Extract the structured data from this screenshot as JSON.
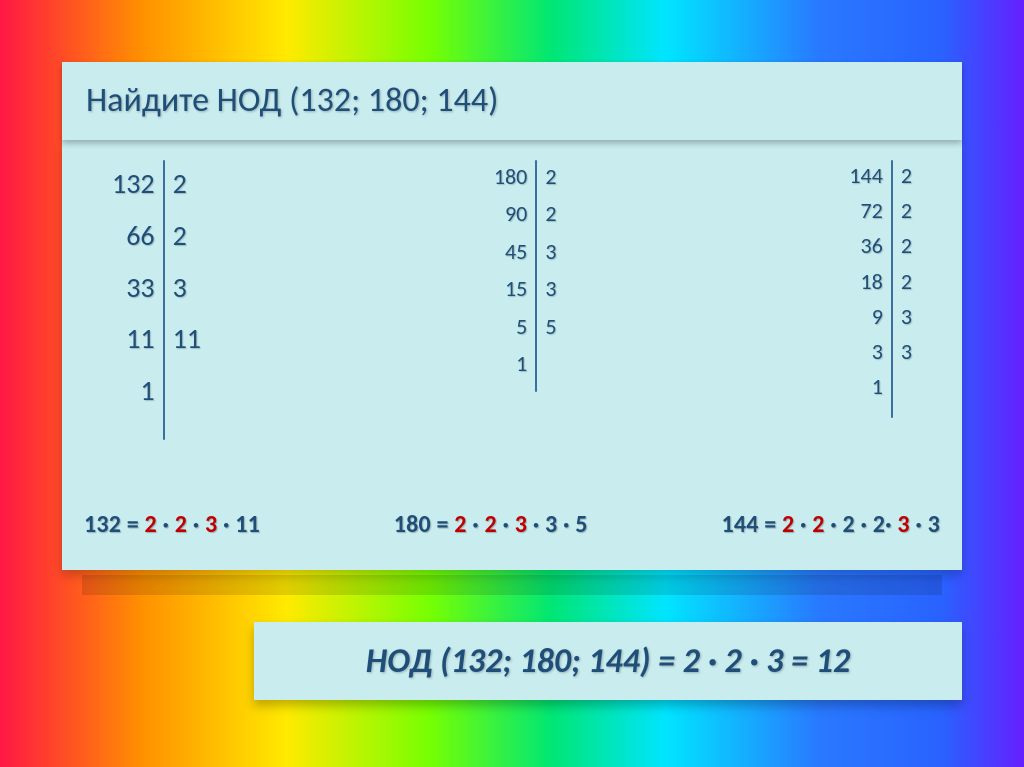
{
  "colors": {
    "card_bg": "#c9ecef",
    "text_primary": "#1f4e79",
    "highlight": "#c00000",
    "divider": "#3b6fa0",
    "gradient_stops": [
      "#ff1744",
      "#ff9100",
      "#ffea00",
      "#76ff03",
      "#00e676",
      "#00e5ff",
      "#2979ff",
      "#2962ff",
      "#651fff"
    ]
  },
  "title": "Найдите  НОД  (132; 180; 144)",
  "tables": {
    "n132": {
      "left": [
        "132",
        "66",
        "33",
        "11",
        "1"
      ],
      "right": [
        "2",
        "2",
        "3",
        "11"
      ],
      "fontsize": 28
    },
    "n180": {
      "left": [
        "180",
        "90",
        "45",
        "15",
        "5",
        "1"
      ],
      "right": [
        "2",
        "2",
        "3",
        "3",
        "5"
      ],
      "fontsize": 22
    },
    "n144": {
      "left": [
        "144",
        "72",
        "36",
        "18",
        "9",
        "3",
        "1"
      ],
      "right": [
        "2",
        "2",
        "2",
        "2",
        "3",
        "3"
      ],
      "fontsize": 22
    }
  },
  "equations": {
    "e1": {
      "lhs": "132 = ",
      "tokens": [
        "hl:2",
        " · ",
        "hl:2",
        " · ",
        "hl:3",
        " · ",
        "11"
      ],
      "fontsize": 24
    },
    "e2": {
      "lhs": "180 = ",
      "tokens": [
        "hl:2",
        " · ",
        "hl:2",
        " · ",
        "hl:3",
        " · ",
        "3",
        " · ",
        "5"
      ],
      "fontsize": 24
    },
    "e3": {
      "lhs": "144 = ",
      "tokens": [
        "hl:2",
        " · ",
        "hl:2",
        " · ",
        "2",
        " · ",
        "2",
        "· ",
        "hl:3",
        " · ",
        "3"
      ],
      "fontsize": 24
    }
  },
  "answer": "НОД (132; 180; 144) = 2 · 2 · 3 = 12"
}
